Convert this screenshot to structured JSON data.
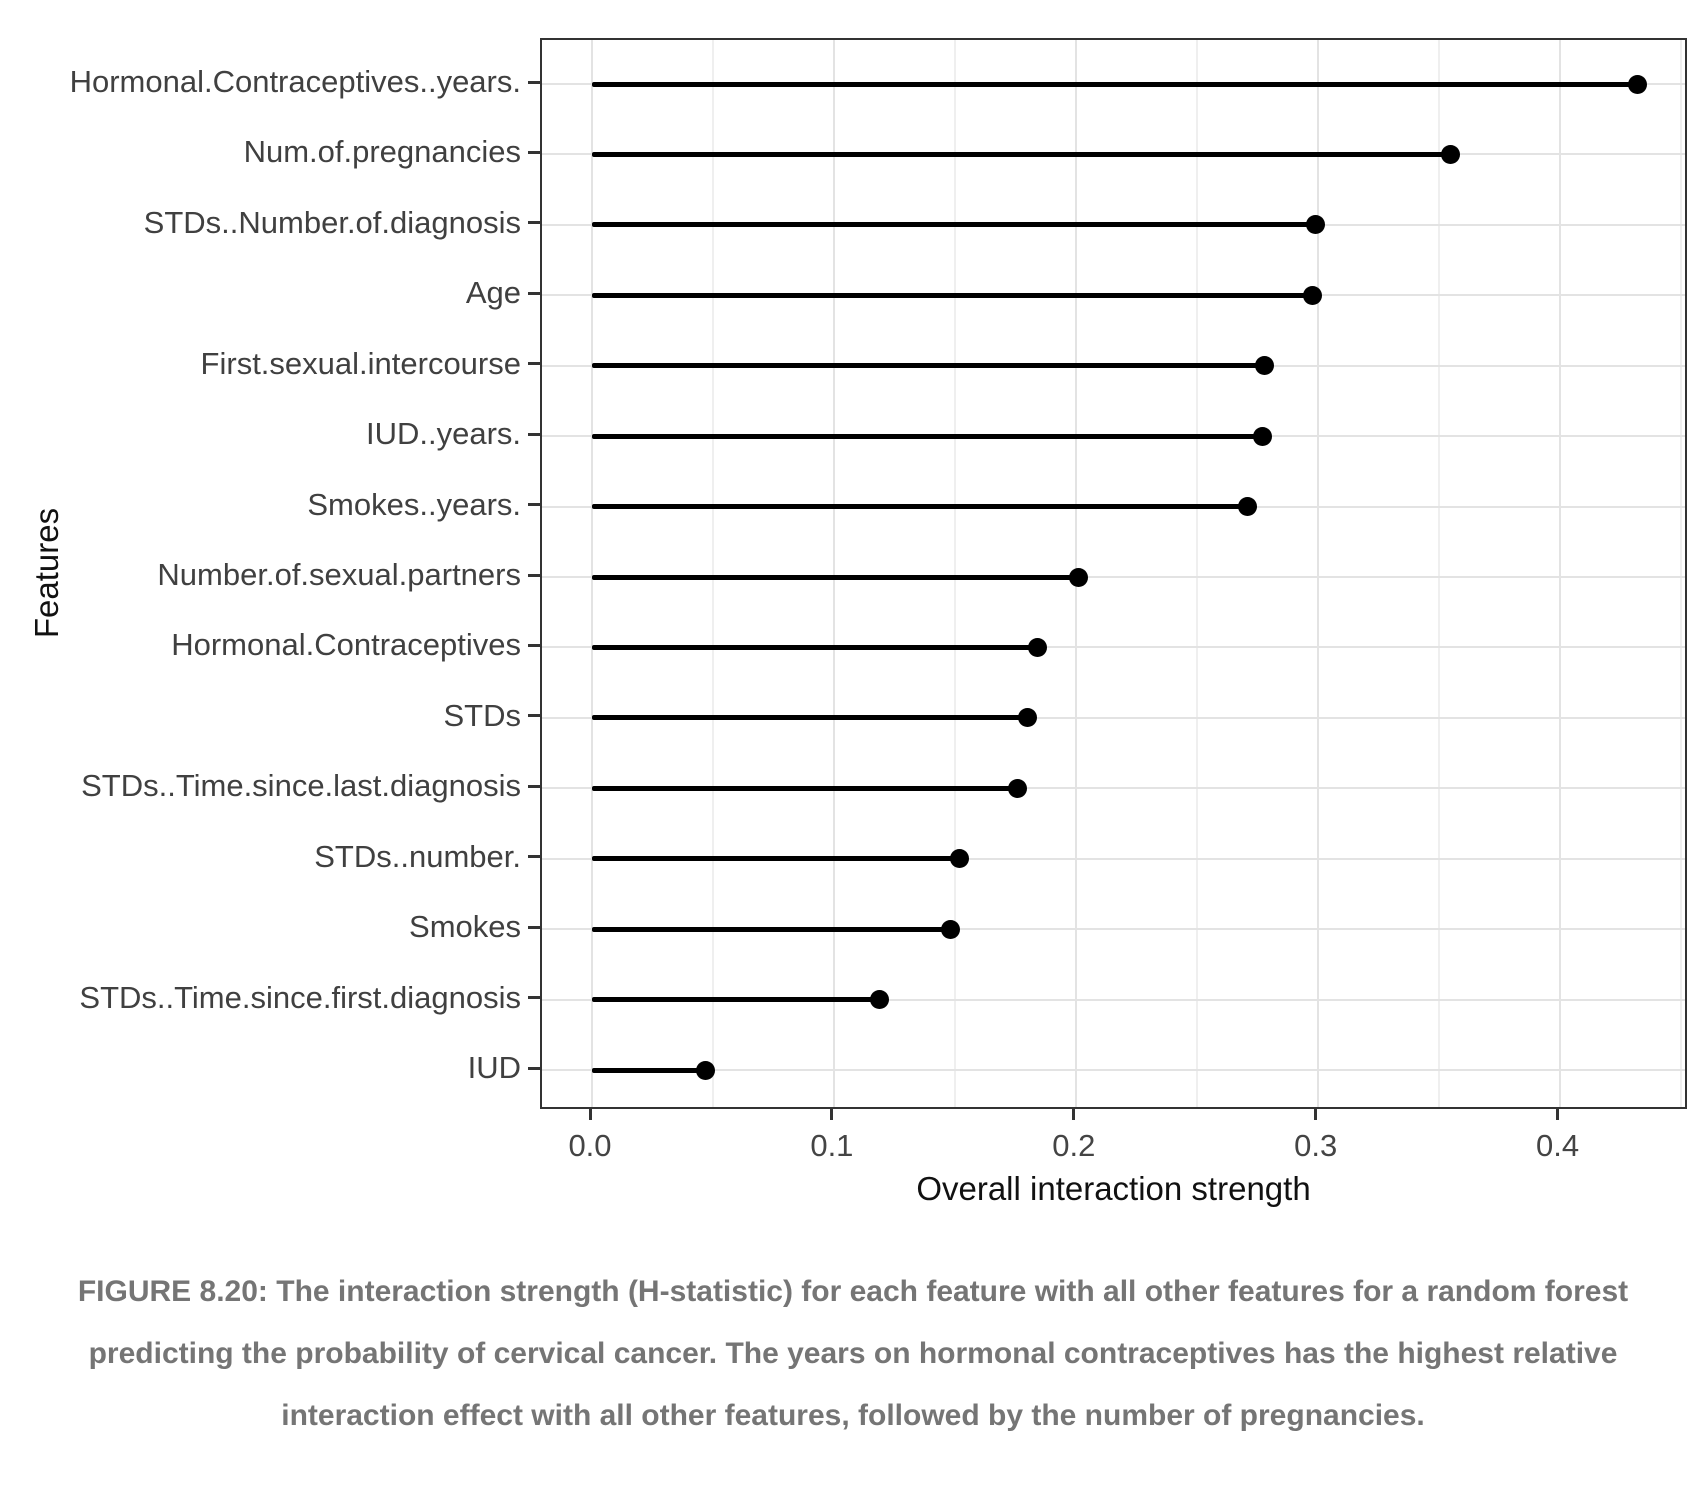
{
  "figure": {
    "caption": "FIGURE 8.20: The interaction strength (H-statistic) for each feature with all other features for a random forest predicting the probability of cervical cancer. The years on hormonal contraceptives has the highest relative interaction effect with all other features, followed by the number of pregnancies."
  },
  "chart_data": {
    "type": "bar",
    "variant": "lollipop",
    "orientation": "horizontal",
    "title": "",
    "xlabel": "Overall interaction strength",
    "ylabel": "Features",
    "categories": [
      "Hormonal.Contraceptives..years.",
      "Num.of.pregnancies",
      "STDs..Number.of.diagnosis",
      "Age",
      "First.sexual.intercourse",
      "IUD..years.",
      "Smokes..years.",
      "Number.of.sexual.partners",
      "Hormonal.Contraceptives",
      "STDs",
      "STDs..Time.since.last.diagnosis",
      "STDs..number.",
      "Smokes",
      "STDs..Time.since.first.diagnosis",
      "IUD"
    ],
    "values": [
      0.432,
      0.355,
      0.299,
      0.298,
      0.278,
      0.277,
      0.271,
      0.201,
      0.184,
      0.18,
      0.176,
      0.152,
      0.148,
      0.119,
      0.047
    ],
    "xlim": [
      -0.021,
      0.453
    ],
    "xticks": [
      0.0,
      0.1,
      0.2,
      0.3,
      0.4
    ],
    "xtick_labels": [
      "0.0",
      "0.1",
      "0.2",
      "0.3",
      "0.4"
    ],
    "xminor_ticks": [
      0.05,
      0.15,
      0.25,
      0.35,
      0.45
    ],
    "grid": {
      "vertical_major": true,
      "vertical_minor": true,
      "horizontal_major_at_categories": true
    },
    "legend": "none",
    "colors": {
      "point": "#000000",
      "segment": "#000000",
      "grid_major": "#e3e3e3",
      "grid_minor": "#efefef",
      "panel_border": "#333333",
      "axis_text": "#404040",
      "axis_title": "#111111",
      "caption_text": "#757575",
      "background": "#ffffff"
    }
  }
}
